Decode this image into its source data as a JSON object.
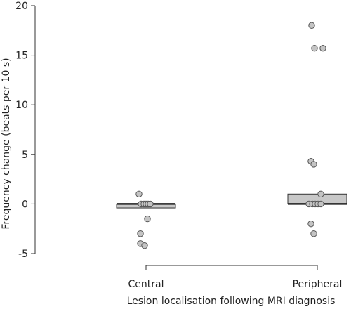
{
  "chart_data": {
    "type": "box",
    "xlabel": "Lesion localisation following MRI diagnosis",
    "ylabel": "Frequency change (beats per 10 s)",
    "ylim": [
      -5,
      20
    ],
    "yticks": [
      -5,
      0,
      5,
      10,
      15,
      20
    ],
    "categories": [
      "Central",
      "Peripheral"
    ],
    "groups": [
      {
        "name": "Central",
        "box": {
          "q1": -0.4,
          "median": 0,
          "q3": 0
        },
        "points": [
          1,
          0,
          0,
          0,
          0,
          0,
          -1.5,
          -3,
          -4,
          -4.2
        ]
      },
      {
        "name": "Peripheral",
        "box": {
          "q1": 0,
          "median": 0,
          "q3": 1
        },
        "points": [
          18,
          15.7,
          15.7,
          4.3,
          4,
          1,
          0,
          0,
          0,
          0,
          0,
          -2,
          -3
        ]
      }
    ],
    "colors": {
      "box_fill": "#c8c8c8",
      "point_fill": "#c4c4c4",
      "point_stroke": "#555555"
    }
  }
}
